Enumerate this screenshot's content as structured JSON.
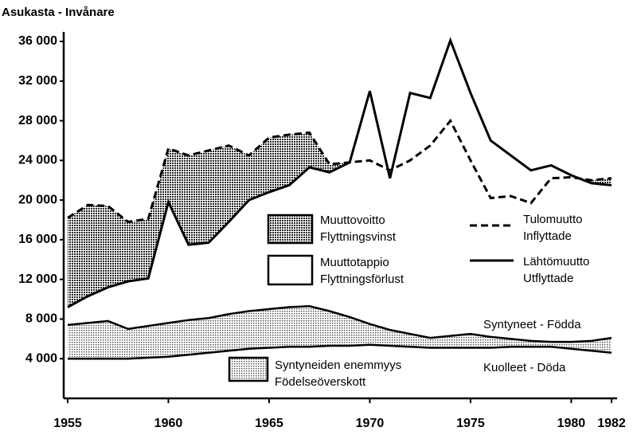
{
  "chart_data": {
    "type": "line",
    "ylabel": "Asukasta - Invånare",
    "x": [
      1955,
      1956,
      1957,
      1958,
      1959,
      1960,
      1961,
      1962,
      1963,
      1964,
      1965,
      1966,
      1967,
      1968,
      1969,
      1970,
      1971,
      1972,
      1973,
      1974,
      1975,
      1976,
      1977,
      1978,
      1979,
      1980,
      1981,
      1982
    ],
    "xlim": [
      1955,
      1982
    ],
    "xticks": [
      1955,
      1960,
      1965,
      1970,
      1975,
      1980,
      1982
    ],
    "ylim": [
      0,
      36000
    ],
    "yticks": [
      {
        "value": 4000,
        "label": "4 000"
      },
      {
        "value": 8000,
        "label": "8 000"
      },
      {
        "value": 12000,
        "label": "12 000"
      },
      {
        "value": 16000,
        "label": "16 000"
      },
      {
        "value": 20000,
        "label": "20 000"
      },
      {
        "value": 24000,
        "label": "24 000"
      },
      {
        "value": 28000,
        "label": "28 000"
      },
      {
        "value": 32000,
        "label": "32 000"
      },
      {
        "value": 36000,
        "label": "36 000"
      }
    ],
    "series": [
      {
        "name": [
          "Tulomuutto",
          "Inflyttade"
        ],
        "color": "#000000",
        "dashed": true,
        "values": [
          18200,
          19500,
          19400,
          17800,
          18100,
          25200,
          24500,
          25000,
          25500,
          24500,
          26300,
          26600,
          26800,
          23600,
          23800,
          24000,
          23000,
          24000,
          25500,
          28000,
          24000,
          20200,
          20400,
          19700,
          22200,
          22300,
          22000,
          22200
        ]
      },
      {
        "name": [
          "Lähtömuutto",
          "Utflyttade"
        ],
        "color": "#000000",
        "dashed": false,
        "values": [
          9200,
          10300,
          11200,
          11800,
          12100,
          19800,
          15500,
          15700,
          17800,
          20000,
          20800,
          21500,
          23300,
          22800,
          23800,
          31000,
          22200,
          30800,
          30300,
          36100,
          30800,
          26000,
          24500,
          23000,
          23500,
          22500,
          21700,
          21500
        ]
      },
      {
        "name": "Syntyneet - Födda",
        "color": "#000000",
        "dashed": false,
        "values": [
          7400,
          7600,
          7800,
          7000,
          7300,
          7600,
          7900,
          8100,
          8500,
          8800,
          9000,
          9200,
          9300,
          8800,
          8200,
          7500,
          6900,
          6500,
          6100,
          6300,
          6500,
          6200,
          6000,
          5800,
          5700,
          5700,
          5800,
          6100
        ]
      },
      {
        "name": "Kuolleet - Döda",
        "color": "#000000",
        "dashed": false,
        "values": [
          4000,
          4000,
          4000,
          4000,
          4100,
          4200,
          4400,
          4600,
          4800,
          5000,
          5100,
          5200,
          5200,
          5300,
          5300,
          5400,
          5300,
          5200,
          5100,
          5100,
          5100,
          5100,
          5200,
          5200,
          5200,
          5000,
          4800,
          4600
        ]
      }
    ],
    "areas": [
      {
        "name": [
          "Muuttovoitto",
          "Flyttningsvinst"
        ],
        "between": [
          0,
          1
        ],
        "pattern": "dense"
      },
      {
        "name": [
          "Muuttotappio",
          "Flyttningsförlust"
        ],
        "between": [
          1,
          0
        ],
        "pattern": "none"
      },
      {
        "name": [
          "Syntyneiden enemmyys",
          "Födelseöverskott"
        ],
        "between": [
          2,
          3
        ],
        "pattern": "light"
      }
    ]
  }
}
